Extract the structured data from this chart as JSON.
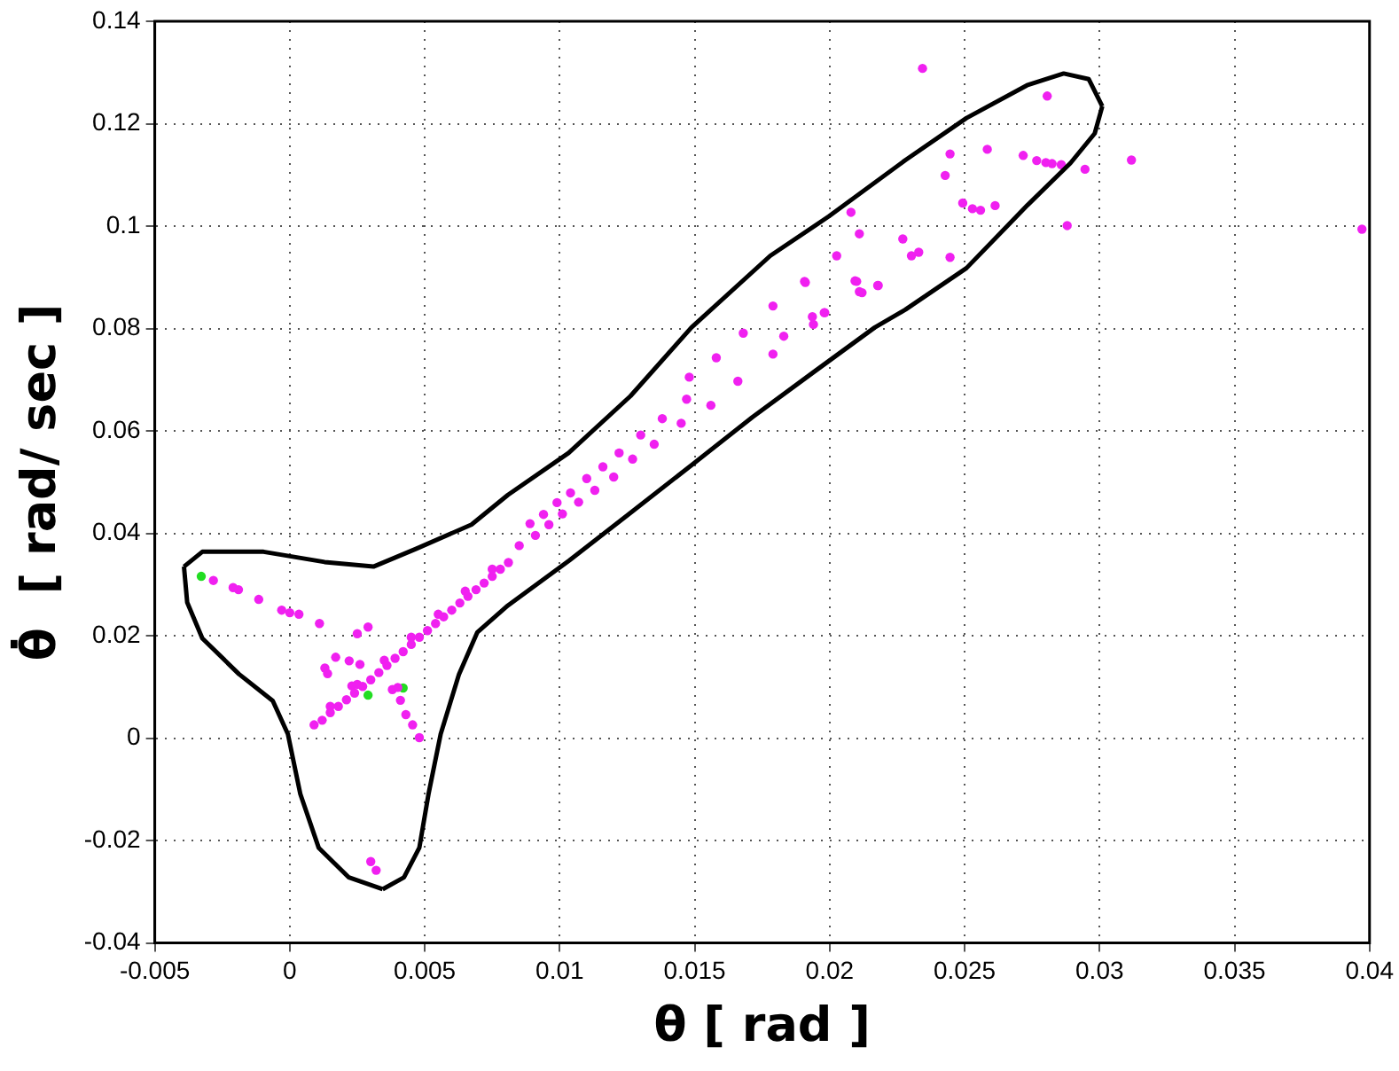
{
  "chart_data": {
    "type": "scatter",
    "xlabel": "θ [ rad ]",
    "ylabel": "θ̇  [ rad/ sec ]",
    "xlim": [
      -0.005,
      0.04
    ],
    "ylim": [
      -0.04,
      0.14
    ],
    "xticks": [
      -0.005,
      0,
      0.005,
      0.01,
      0.015,
      0.02,
      0.025,
      0.03,
      0.035,
      0.04
    ],
    "yticks": [
      -0.04,
      -0.02,
      0,
      0.02,
      0.04,
      0.06,
      0.08,
      0.1,
      0.12,
      0.14
    ],
    "grid": true,
    "marker": "circle",
    "series": [
      {
        "type": "line",
        "marker": "none",
        "color": "#000000",
        "x": [
          -0.00392,
          -0.00324,
          -0.00097,
          0.00129,
          0.0031,
          0.00469,
          0.00673,
          0.00808,
          0.01033,
          0.01262,
          0.01488,
          0.0178,
          0.01997,
          0.02281,
          0.02507,
          0.02731,
          0.02867,
          0.0296,
          0.0301
        ],
        "values": [
          0.0335,
          0.0364,
          0.0364,
          0.0344,
          0.0335,
          0.037,
          0.0417,
          0.0475,
          0.0557,
          0.0668,
          0.0802,
          0.0942,
          0.1019,
          0.1129,
          0.1211,
          0.1275,
          0.1298,
          0.1287,
          0.1234
        ]
      },
      {
        "type": "line",
        "marker": "none",
        "color": "#000000",
        "x": [
          0.00344,
          0.00423,
          0.0048,
          0.00514,
          0.00559,
          0.00627,
          0.00695,
          0.00808,
          0.01035,
          0.01262,
          0.01488,
          0.01714,
          0.01941,
          0.02167,
          0.02281,
          0.02507,
          0.02733,
          0.02892,
          0.02982,
          0.0301
        ],
        "values": [
          -0.0295,
          -0.0272,
          -0.0214,
          -0.0109,
          0.0008,
          0.0125,
          0.0207,
          0.0259,
          0.0347,
          0.044,
          0.0533,
          0.0627,
          0.0715,
          0.0802,
          0.0837,
          0.0918,
          0.1041,
          0.1123,
          0.1181,
          0.1234
        ]
      },
      {
        "type": "line",
        "marker": "none",
        "color": "#000000",
        "x": [
          -0.00392,
          -0.0038,
          -0.00324,
          -0.00188,
          -0.00063,
          -7e-05,
          0.00039,
          0.00107,
          0.00219,
          0.00344
        ],
        "values": [
          0.0335,
          0.0265,
          0.0195,
          0.0125,
          0.0073,
          0.0008,
          -0.0109,
          -0.0214,
          -0.0272,
          -0.0295
        ]
      },
      {
        "type": "scatter",
        "color": "#f020f0",
        "x": [
          -0.00283,
          -0.0021,
          -0.0019,
          -0.00115,
          -0.0003,
          0,
          0.00034,
          0.0011,
          0.0025,
          0.0029,
          0.0017,
          0.0022,
          0.0026,
          0.0013,
          0.0014,
          0.0023,
          0.0038,
          0.004,
          0.0041,
          0.0043,
          0.00455,
          0.0048,
          0.003,
          0.0032,
          0.0009,
          0.0012,
          0.0015,
          0.0018,
          0.0021,
          0.0024,
          0.0027,
          0.003,
          0.0033,
          0.0036,
          0.0039,
          0.0042,
          0.0045,
          0.0048,
          0.0051,
          0.0054,
          0.0057,
          0.006,
          0.0063,
          0.0066,
          0.0069,
          0.0072,
          0.0075,
          0.0078,
          0.0081,
          0.0015,
          0.0025,
          0.0035,
          0.0045,
          0.0055,
          0.0065,
          0.0075,
          0.0085,
          0.0091,
          0.0096,
          0.0101,
          0.0107,
          0.0113,
          0.012,
          0.0127,
          0.0135,
          0.0145,
          0.0156,
          0.0166,
          0.0089,
          0.0094,
          0.0099,
          0.0104,
          0.011,
          0.0116,
          0.0122,
          0.013,
          0.0138,
          0.0147,
          0.0148,
          0.0158,
          0.0168,
          0.0179,
          0.0191,
          0.0183,
          0.0179,
          0.0194,
          0.0198,
          0.021,
          0.0212,
          0.0218,
          0.02344,
          0.02806,
          0.02446,
          0.02584,
          0.02717,
          0.02767,
          0.02801,
          0.02824,
          0.02858,
          0.02946,
          0.03118,
          0.02428,
          0.02493,
          0.02529,
          0.02559,
          0.02613,
          0.0288,
          0.03972,
          0.02079,
          0.0211,
          0.02026,
          0.02271,
          0.02303,
          0.0233,
          0.02446,
          0.01907,
          0.02094,
          0.0211,
          0.02178,
          0.01982,
          0.01936
        ],
        "values": [
          0.0308,
          0.0294,
          0.029,
          0.0271,
          0.025,
          0.0245,
          0.0242,
          0.0224,
          0.0204,
          0.0217,
          0.0158,
          0.0151,
          0.0144,
          0.0137,
          0.0126,
          0.0102,
          0.0095,
          0.0099,
          0.0074,
          0.0046,
          0.0026,
          0.0001,
          -0.0241,
          -0.0258,
          0.0026,
          0.0035,
          0.005,
          0.0062,
          0.0075,
          0.0088,
          0.0101,
          0.0114,
          0.0128,
          0.0142,
          0.0156,
          0.0169,
          0.0183,
          0.0197,
          0.021,
          0.0224,
          0.0237,
          0.025,
          0.0264,
          0.0277,
          0.029,
          0.0303,
          0.0316,
          0.033,
          0.0343,
          0.0062,
          0.0105,
          0.0152,
          0.0197,
          0.0242,
          0.0287,
          0.033,
          0.0376,
          0.0396,
          0.0417,
          0.0438,
          0.0461,
          0.0484,
          0.051,
          0.0545,
          0.0574,
          0.0615,
          0.065,
          0.0697,
          0.0419,
          0.0437,
          0.046,
          0.0479,
          0.0507,
          0.053,
          0.0557,
          0.0592,
          0.0624,
          0.0662,
          0.0705,
          0.0743,
          0.0791,
          0.0844,
          0.089,
          0.0785,
          0.075,
          0.0808,
          0.0831,
          0.0892,
          0.087,
          0.0884,
          0.1308,
          0.1254,
          0.1141,
          0.115,
          0.1138,
          0.1128,
          0.1124,
          0.1122,
          0.112,
          0.1111,
          0.1129,
          0.1099,
          0.1045,
          0.1034,
          0.1031,
          0.104,
          0.1001,
          0.0994,
          0.1027,
          0.0985,
          0.0942,
          0.0975,
          0.0942,
          0.0949,
          0.0939,
          0.0892,
          0.0893,
          0.0872,
          0.0884,
          0.0831,
          0.0823
        ]
      },
      {
        "type": "scatter",
        "color": "#22dd22",
        "x": [
          -0.00328,
          0.0029,
          0.0042
        ],
        "values": [
          0.0316,
          0.0084,
          0.0098
        ]
      }
    ]
  }
}
